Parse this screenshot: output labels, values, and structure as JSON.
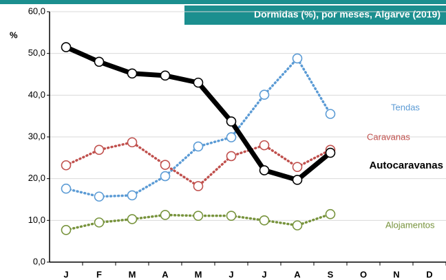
{
  "chart_data": {
    "type": "line",
    "title": "Dormidas (%), por meses, Algarve (2019)",
    "y_label": "%",
    "categories": [
      "J",
      "F",
      "M",
      "A",
      "M",
      "J",
      "J",
      "A",
      "S",
      "O",
      "N",
      "D"
    ],
    "series": [
      {
        "name": "Tendas",
        "color": "#5b9bd5",
        "style": "dotted",
        "values": [
          17.6,
          15.7,
          16.0,
          20.6,
          27.7,
          29.9,
          40.1,
          48.8,
          35.5,
          null,
          null,
          null
        ]
      },
      {
        "name": "Caravanas",
        "color": "#c0504d",
        "style": "dotted",
        "values": [
          23.2,
          26.9,
          28.7,
          23.3,
          18.2,
          25.4,
          28.0,
          22.8,
          26.9,
          null,
          null,
          null
        ]
      },
      {
        "name": "Autocaravanas",
        "color": "#000000",
        "style": "solid",
        "values": [
          51.5,
          48.0,
          45.2,
          44.7,
          43.0,
          33.7,
          22.0,
          19.7,
          26.2,
          null,
          null,
          null
        ]
      },
      {
        "name": "Alojamentos",
        "color": "#77933c",
        "style": "dotted",
        "values": [
          7.7,
          9.5,
          10.3,
          11.3,
          11.1,
          11.1,
          10.0,
          8.8,
          11.5,
          null,
          null,
          null
        ]
      }
    ],
    "ylim": [
      0,
      60
    ],
    "yticks": [
      {
        "value": 0,
        "label": "0,0"
      },
      {
        "value": 10,
        "label": "10,0"
      },
      {
        "value": 20,
        "label": "20,0"
      },
      {
        "value": 30,
        "label": "30,0"
      },
      {
        "value": 40,
        "label": "40,0"
      },
      {
        "value": 50,
        "label": "50,0"
      },
      {
        "value": 60,
        "label": "60,0"
      }
    ],
    "grid": true
  }
}
